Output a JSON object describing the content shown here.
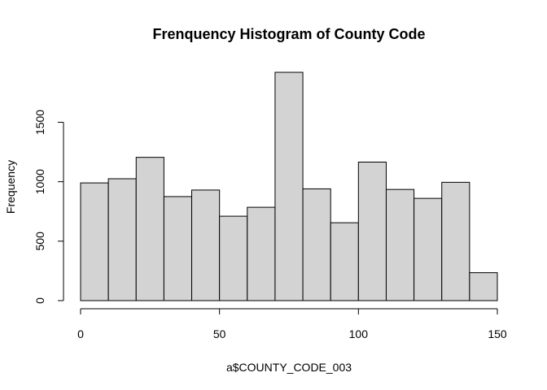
{
  "chart_data": {
    "type": "bar",
    "title": "Frenquency Histogram of County Code",
    "xlabel": "a$COUNTY_CODE_003",
    "ylabel": "Frequency",
    "bin_edges": [
      0,
      10,
      20,
      30,
      40,
      50,
      60,
      70,
      80,
      90,
      100,
      110,
      120,
      130,
      140,
      150
    ],
    "values": [
      990,
      1025,
      1205,
      875,
      930,
      710,
      785,
      1920,
      940,
      655,
      1165,
      935,
      860,
      995,
      235
    ],
    "xlim": [
      0,
      150
    ],
    "ylim": [
      0,
      1920
    ],
    "xticks": [
      0,
      50,
      100,
      150
    ],
    "xtick_labels": [
      "0",
      "50",
      "100",
      "150"
    ],
    "yticks": [
      0,
      500,
      1000,
      1500
    ],
    "ytick_labels": [
      "0",
      "500",
      "1000",
      "1500"
    ],
    "grid": false,
    "bar_color": "#d3d3d3",
    "edge_color": "#000000"
  }
}
